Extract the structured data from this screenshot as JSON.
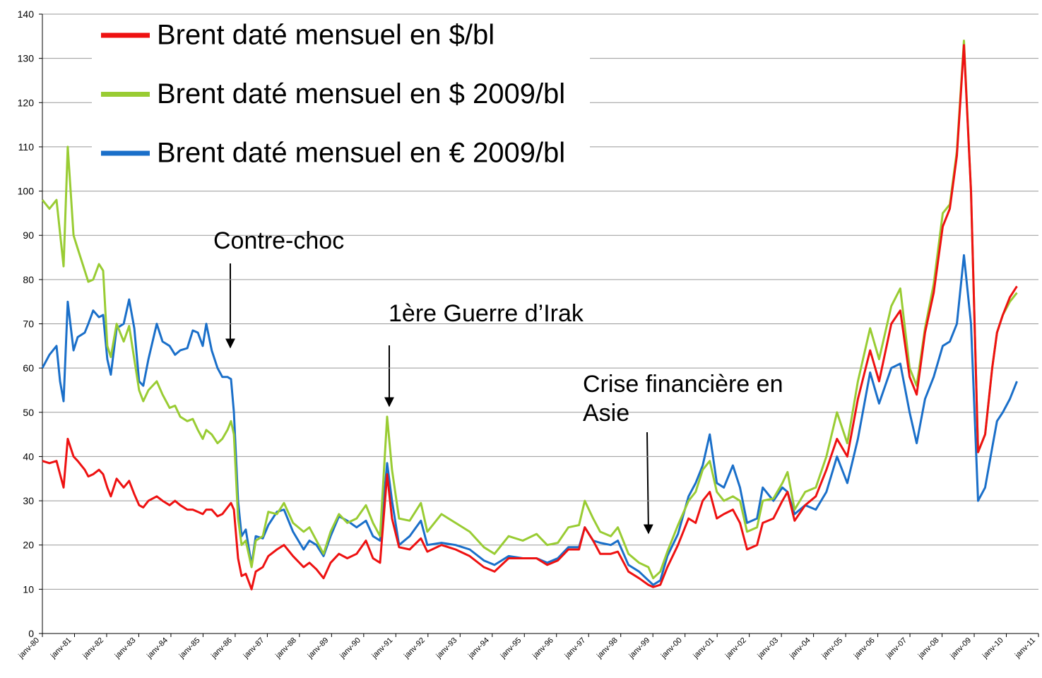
{
  "chart_data": {
    "type": "line",
    "x": [
      1980.0,
      1980.22,
      1980.44,
      1980.55,
      1980.66,
      1980.79,
      1980.97,
      1981.1,
      1981.32,
      1981.43,
      1981.58,
      1981.76,
      1981.89,
      1982.02,
      1982.13,
      1982.31,
      1982.53,
      1982.7,
      1982.86,
      1983.01,
      1983.14,
      1983.3,
      1983.56,
      1983.74,
      1983.96,
      1984.13,
      1984.29,
      1984.51,
      1984.68,
      1984.84,
      1984.99,
      1985.1,
      1985.27,
      1985.45,
      1985.6,
      1985.76,
      1985.87,
      1985.96,
      1986.09,
      1986.2,
      1986.33,
      1986.51,
      1986.64,
      1986.86,
      1987.03,
      1987.3,
      1987.52,
      1987.8,
      1988.13,
      1988.31,
      1988.53,
      1988.75,
      1988.97,
      1989.23,
      1989.49,
      1989.78,
      1990.07,
      1990.29,
      1990.51,
      1990.73,
      1990.88,
      1991.1,
      1991.43,
      1991.78,
      1991.98,
      1992.42,
      1992.86,
      1993.3,
      1993.74,
      1994.07,
      1994.51,
      1994.95,
      1995.38,
      1995.71,
      1996.04,
      1996.37,
      1996.7,
      1996.88,
      1997.14,
      1997.36,
      1997.69,
      1997.91,
      1998.24,
      1998.57,
      1998.86,
      1999.01,
      1999.23,
      1999.45,
      1999.78,
      2000.11,
      2000.33,
      2000.55,
      2000.77,
      2000.99,
      2001.21,
      2001.49,
      2001.71,
      2001.93,
      2002.24,
      2002.42,
      2002.75,
      2003.03,
      2003.19,
      2003.41,
      2003.74,
      2004.07,
      2004.4,
      2004.73,
      2005.05,
      2005.38,
      2005.76,
      2006.04,
      2006.42,
      2006.7,
      2006.99,
      2007.21,
      2007.47,
      2007.74,
      2008.02,
      2008.24,
      2008.46,
      2008.68,
      2008.9,
      2009.12,
      2009.34,
      2009.56,
      2009.71,
      2009.89,
      2010.11,
      2010.33
    ],
    "series": [
      {
        "name": "Brent daté mensuel en $/bl",
        "color": "#ee1111",
        "values": [
          39,
          38.5,
          39,
          36,
          33,
          44,
          40,
          39,
          37,
          35.5,
          36,
          37,
          36,
          33,
          31,
          35,
          33,
          34.5,
          31.5,
          29,
          28.5,
          30,
          31,
          30,
          29,
          30,
          29,
          28,
          28,
          27.5,
          27,
          28,
          28,
          26.5,
          27,
          28.5,
          29.5,
          28,
          17,
          13,
          13.5,
          10,
          14,
          15,
          17.5,
          19,
          20,
          17.5,
          15,
          16,
          14.5,
          12.5,
          16,
          18,
          17,
          18,
          21,
          17,
          16,
          36,
          26,
          19.5,
          19,
          21.5,
          18.5,
          20,
          19,
          17.5,
          15,
          14,
          17,
          17,
          17,
          15.5,
          16.5,
          19,
          19,
          24,
          21,
          18,
          18,
          18.5,
          14,
          12.5,
          11,
          10.5,
          11,
          15,
          20,
          26,
          25,
          30,
          32,
          26,
          27,
          28,
          25,
          19,
          20,
          25,
          26,
          30,
          32,
          25.5,
          29,
          31,
          37,
          44,
          40,
          53,
          64,
          57,
          70,
          73,
          58,
          54,
          68,
          77,
          92,
          96,
          108,
          133,
          100,
          41,
          45,
          60,
          68,
          72,
          76,
          78.5
        ]
      },
      {
        "name": "Brent daté mensuel en $ 2009/bl",
        "color": "#99cc33",
        "values": [
          98,
          96,
          98,
          90.5,
          83,
          110,
          90,
          87,
          82,
          79.5,
          80,
          83.5,
          82,
          65,
          62.5,
          70,
          66,
          69.5,
          62,
          55,
          52.5,
          55,
          57,
          54,
          51,
          51.5,
          49,
          48,
          48.5,
          46,
          44,
          46,
          45,
          43,
          44,
          46,
          48,
          45,
          26,
          20,
          21,
          15,
          21,
          22,
          27.5,
          27,
          29.5,
          25,
          23,
          24,
          21,
          18,
          23,
          27,
          25,
          26,
          29,
          25,
          22,
          49,
          37,
          26,
          25.5,
          29.5,
          23,
          27,
          25,
          23,
          19.5,
          18,
          22,
          21,
          22.5,
          20,
          20.5,
          24,
          24.5,
          30,
          26,
          23,
          22,
          24,
          18,
          16,
          15,
          12.5,
          14,
          18.5,
          24.5,
          30,
          32,
          37,
          39,
          32,
          30,
          31,
          30,
          23,
          24,
          30,
          30.5,
          34,
          36.5,
          28,
          32,
          33,
          40,
          50,
          43,
          57,
          69,
          62,
          74,
          78,
          60,
          56,
          69,
          79,
          95,
          97,
          109,
          134,
          100,
          41,
          45,
          60,
          68,
          72,
          75,
          77
        ]
      },
      {
        "name": "Brent daté mensuel en € 2009/bl",
        "color": "#1a6fc9",
        "values": [
          60,
          63,
          65,
          57,
          52.5,
          75,
          64,
          67,
          68,
          70,
          73,
          71.5,
          72,
          62,
          58.5,
          69,
          70,
          75.5,
          69,
          57,
          56,
          62,
          70,
          66,
          65,
          63,
          64,
          64.5,
          68.5,
          68,
          65,
          70,
          64,
          60,
          58,
          58,
          57.5,
          50,
          30,
          22,
          23.5,
          15.5,
          22,
          21.5,
          24.5,
          27.5,
          28,
          23,
          19,
          21,
          20,
          17.5,
          22,
          26.5,
          25.5,
          24,
          25.5,
          22,
          21,
          38.5,
          30,
          20,
          22,
          25.5,
          20,
          20.5,
          20,
          19,
          16.5,
          15.5,
          17.5,
          17,
          17,
          16,
          17,
          19.5,
          19.5,
          24,
          21,
          20.5,
          20,
          21,
          15.5,
          14,
          12,
          11,
          12,
          17.5,
          22.5,
          31,
          34,
          38,
          45,
          34,
          33,
          38,
          33,
          25,
          26,
          33,
          30,
          33,
          32,
          27,
          29,
          28,
          32,
          40,
          34,
          44,
          59,
          52,
          60,
          61,
          50,
          43,
          53,
          58,
          65,
          66,
          70,
          85.5,
          70,
          30,
          33,
          42,
          48,
          50,
          53,
          57
        ]
      }
    ],
    "xlim": [
      1980,
      2011
    ],
    "xticks": [
      {
        "value": 1980,
        "label": "janv-80"
      },
      {
        "value": 1981,
        "label": "janv-81"
      },
      {
        "value": 1982,
        "label": "janv-82"
      },
      {
        "value": 1983,
        "label": "janv-83"
      },
      {
        "value": 1984,
        "label": "janv-84"
      },
      {
        "value": 1985,
        "label": "janv-85"
      },
      {
        "value": 1986,
        "label": "janv-86"
      },
      {
        "value": 1987,
        "label": "janv-87"
      },
      {
        "value": 1988,
        "label": "janv-88"
      },
      {
        "value": 1989,
        "label": "janv-89"
      },
      {
        "value": 1990,
        "label": "janv-90"
      },
      {
        "value": 1991,
        "label": "janv-91"
      },
      {
        "value": 1992,
        "label": "janv-92"
      },
      {
        "value": 1993,
        "label": "janv-93"
      },
      {
        "value": 1994,
        "label": "janv-94"
      },
      {
        "value": 1995,
        "label": "janv-95"
      },
      {
        "value": 1996,
        "label": "janv-96"
      },
      {
        "value": 1997,
        "label": "janv-97"
      },
      {
        "value": 1998,
        "label": "janv-98"
      },
      {
        "value": 1999,
        "label": "janv-99"
      },
      {
        "value": 2000,
        "label": "janv-00"
      },
      {
        "value": 2001,
        "label": "janv-01"
      },
      {
        "value": 2002,
        "label": "janv-02"
      },
      {
        "value": 2003,
        "label": "janv-03"
      },
      {
        "value": 2004,
        "label": "janv-04"
      },
      {
        "value": 2005,
        "label": "janv-05"
      },
      {
        "value": 2006,
        "label": "janv-06"
      },
      {
        "value": 2007,
        "label": "janv-07"
      },
      {
        "value": 2008,
        "label": "janv-08"
      },
      {
        "value": 2009,
        "label": "janv-09"
      },
      {
        "value": 2010,
        "label": "janv-10"
      },
      {
        "value": 2011,
        "label": "janv-11"
      }
    ],
    "ylim": [
      0,
      140
    ],
    "yticks": [
      0,
      10,
      20,
      30,
      40,
      50,
      60,
      70,
      80,
      90,
      100,
      110,
      120,
      130,
      140
    ],
    "grid": true,
    "legend": "top-left",
    "annotations": [
      {
        "lines": [
          "Contre-choc"
        ]
      },
      {
        "lines": [
          "1ère Guerre d’Irak"
        ]
      },
      {
        "lines": [
          "Crise financière en",
          "Asie"
        ]
      }
    ]
  }
}
